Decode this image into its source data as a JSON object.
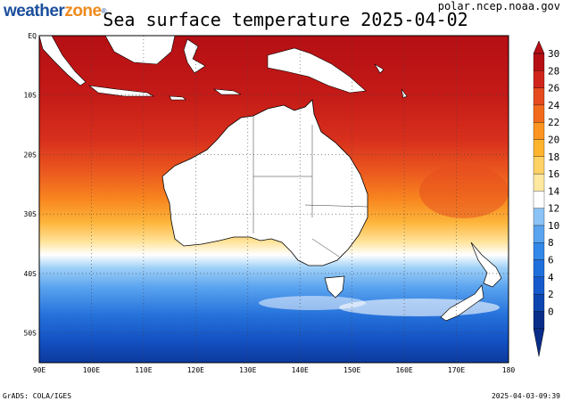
{
  "brand": {
    "part1": "weather",
    "part2": "zone",
    "mark": "®"
  },
  "title": "Sea surface temperature 2025-04-02",
  "source": "polar.ncep.noaa.gov",
  "footer": {
    "left": "GrADS: COLA/IGES",
    "right": "2025-04-03-09:39"
  },
  "map": {
    "lon_range": [
      90,
      180
    ],
    "lat_range": [
      -55,
      0
    ],
    "lon_ticks": [
      "90E",
      "100E",
      "110E",
      "120E",
      "130E",
      "140E",
      "150E",
      "160E",
      "170E",
      "180"
    ],
    "lat_ticks": [
      "EQ",
      "10S",
      "20S",
      "30S",
      "40S",
      "50S"
    ],
    "gridlines": true
  },
  "colorbar": {
    "labels": [
      "0",
      "2",
      "4",
      "6",
      "8",
      "10",
      "12",
      "14",
      "16",
      "18",
      "20",
      "22",
      "24",
      "26",
      "28",
      "30"
    ],
    "colors": [
      "#0a2d8a",
      "#0c45b0",
      "#1659cc",
      "#1f6fdd",
      "#3288e9",
      "#5aa3ef",
      "#8cc3f6",
      "#ffffff",
      "#ffe8a0",
      "#ffd266",
      "#ffb42e",
      "#fb9420",
      "#f26a1b",
      "#e54b1e",
      "#cf241c",
      "#b50f14"
    ]
  }
}
